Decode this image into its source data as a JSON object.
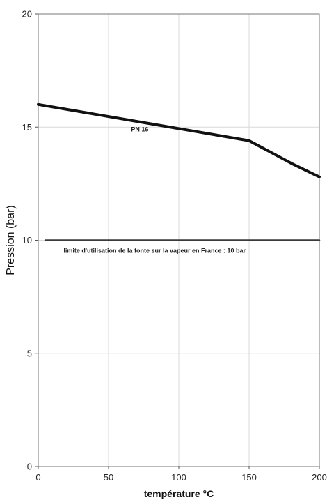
{
  "chart_data": {
    "type": "line",
    "title": "",
    "xlabel": "température °C",
    "ylabel": "Pression (bar)",
    "xlim": [
      0,
      200
    ],
    "ylim": [
      0,
      20
    ],
    "x_ticks": [
      0,
      50,
      100,
      150,
      200
    ],
    "y_ticks": [
      0,
      5,
      10,
      15,
      20
    ],
    "grid": true,
    "legend": "none",
    "series": [
      {
        "name": "PN 16",
        "x": [
          0,
          150,
          180,
          200
        ],
        "y": [
          16,
          14.4,
          13.4,
          12.8
        ],
        "color": "#111111"
      },
      {
        "name": "limite d'utilisation de la fonte sur la vapeur en France : 10 bar",
        "x": [
          5,
          200
        ],
        "y": [
          10,
          10
        ],
        "color": "#3a3a3a"
      }
    ],
    "annotations": [
      {
        "text": "PN 16",
        "x": 66,
        "y": 14.8
      },
      {
        "text": "limite d'utilisation de la fonte sur la vapeur en France : 10 bar",
        "x": 18,
        "y": 9.45
      }
    ]
  }
}
